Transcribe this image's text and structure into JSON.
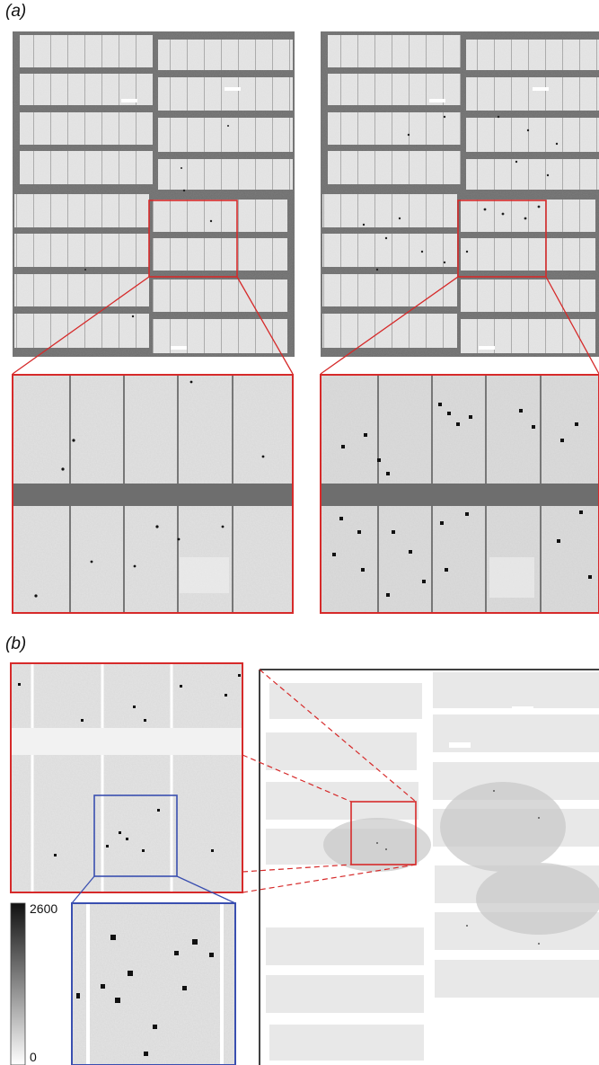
{
  "panel_a": {
    "label": "(a)"
  },
  "panel_b": {
    "label": "(b)"
  },
  "colorbar": {
    "max_label": "2600",
    "min_label": "0"
  },
  "colors": {
    "frame_gray": "#6e6e6e",
    "highlight_red": "#d62a2a",
    "highlight_blue": "#3a4fb0"
  }
}
